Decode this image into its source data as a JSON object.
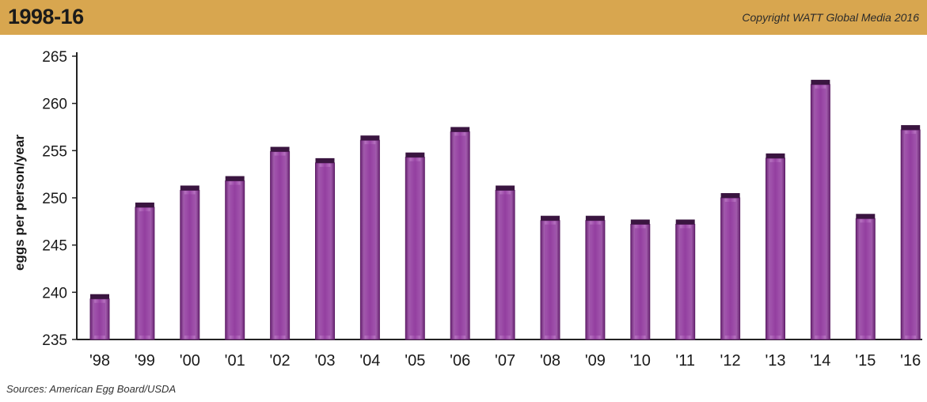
{
  "header": {
    "title": "1998-16",
    "copyright": "Copyright WATT Global Media 2016"
  },
  "source_note": "Sources: American Egg Board/USDA",
  "colors": {
    "header_bg": "#d8a64f",
    "bar_main": "#8e3a9a",
    "bar_light": "#b570bf",
    "bar_dark": "#5e1f67",
    "bar_cap": "#3a1540"
  },
  "chart_data": {
    "type": "bar",
    "title": "",
    "xlabel": "",
    "ylabel": "eggs per person/year",
    "categories": [
      "'98",
      "'99",
      "'00",
      "'01",
      "'02",
      "'03",
      "'04",
      "'05",
      "'06",
      "'07",
      "'08",
      "'09",
      "'10",
      "'11",
      "'12",
      "'13",
      "'14",
      "'15",
      "'16"
    ],
    "values": [
      239.8,
      249.5,
      251.3,
      252.3,
      255.4,
      254.2,
      256.6,
      254.8,
      257.5,
      251.3,
      248.1,
      248.1,
      247.7,
      247.7,
      250.5,
      254.7,
      262.5,
      248.3,
      257.7
    ],
    "ylim": [
      235,
      265
    ],
    "yticks": [
      235,
      240,
      245,
      250,
      255,
      260,
      265
    ],
    "grid": false,
    "legend": "none"
  }
}
